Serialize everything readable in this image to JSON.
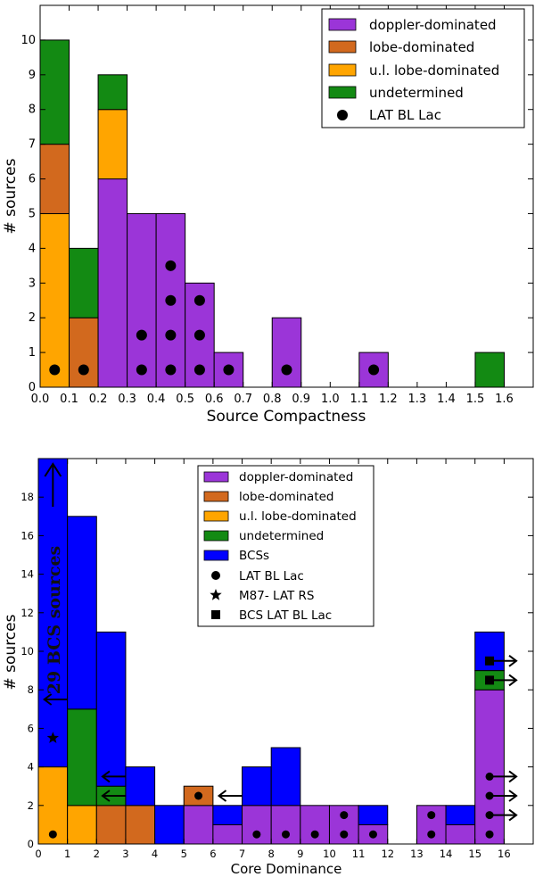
{
  "colors": {
    "doppler": "#9b35d8",
    "lobe": "#d2691e",
    "ul_lobe": "#ffa500",
    "undetermined": "#138a13",
    "bcs": "#0000ff",
    "marker": "#000000"
  },
  "chart_data": [
    {
      "type": "bar",
      "stacked": true,
      "title": "",
      "xlabel": "Source Compactness",
      "ylabel": "# sources",
      "xlim": [
        0.0,
        1.7
      ],
      "ylim": [
        0,
        11
      ],
      "bin_width": 0.1,
      "x_ticks": [
        "0.0",
        "0.1",
        "0.2",
        "0.3",
        "0.4",
        "0.5",
        "0.6",
        "0.7",
        "0.8",
        "0.9",
        "1.0",
        "1.1",
        "1.2",
        "1.3",
        "1.4",
        "1.5",
        "1.6"
      ],
      "y_ticks": [
        "0",
        "1",
        "2",
        "3",
        "4",
        "5",
        "6",
        "7",
        "8",
        "9",
        "10"
      ],
      "legend_position": "top-right",
      "legend": [
        "doppler-dominated",
        "lobe-dominated",
        "u.l. lobe-dominated",
        "undetermined",
        "LAT BL Lac"
      ],
      "bars": [
        {
          "x0": 0.0,
          "segments": [
            {
              "series": "ul_lobe",
              "value": 5
            },
            {
              "series": "lobe",
              "value": 2
            },
            {
              "series": "undetermined",
              "value": 3
            }
          ]
        },
        {
          "x0": 0.1,
          "segments": [
            {
              "series": "lobe",
              "value": 2
            },
            {
              "series": "undetermined",
              "value": 2
            }
          ]
        },
        {
          "x0": 0.2,
          "segments": [
            {
              "series": "doppler",
              "value": 6
            },
            {
              "series": "ul_lobe",
              "value": 2
            },
            {
              "series": "undetermined",
              "value": 1
            }
          ]
        },
        {
          "x0": 0.3,
          "segments": [
            {
              "series": "doppler",
              "value": 5
            }
          ]
        },
        {
          "x0": 0.4,
          "segments": [
            {
              "series": "doppler",
              "value": 5
            }
          ]
        },
        {
          "x0": 0.5,
          "segments": [
            {
              "series": "doppler",
              "value": 3
            }
          ]
        },
        {
          "x0": 0.6,
          "segments": [
            {
              "series": "doppler",
              "value": 1
            }
          ]
        },
        {
          "x0": 0.8,
          "segments": [
            {
              "series": "doppler",
              "value": 2
            }
          ]
        },
        {
          "x0": 1.1,
          "segments": [
            {
              "series": "doppler",
              "value": 1
            }
          ]
        },
        {
          "x0": 1.5,
          "segments": [
            {
              "series": "undetermined",
              "value": 1
            }
          ]
        }
      ],
      "markers": [
        {
          "symbol": "circle",
          "x": 0.05,
          "y": 0.5
        },
        {
          "symbol": "circle",
          "x": 0.15,
          "y": 0.5
        },
        {
          "symbol": "circle",
          "x": 0.35,
          "y": 0.5
        },
        {
          "symbol": "circle",
          "x": 0.35,
          "y": 1.5
        },
        {
          "symbol": "circle",
          "x": 0.45,
          "y": 0.5
        },
        {
          "symbol": "circle",
          "x": 0.45,
          "y": 1.5
        },
        {
          "symbol": "circle",
          "x": 0.45,
          "y": 2.5
        },
        {
          "symbol": "circle",
          "x": 0.45,
          "y": 3.5
        },
        {
          "symbol": "circle",
          "x": 0.55,
          "y": 0.5
        },
        {
          "symbol": "circle",
          "x": 0.55,
          "y": 1.5
        },
        {
          "symbol": "circle",
          "x": 0.55,
          "y": 2.5
        },
        {
          "symbol": "circle",
          "x": 0.65,
          "y": 0.5
        },
        {
          "symbol": "circle",
          "x": 0.85,
          "y": 0.5
        },
        {
          "symbol": "circle",
          "x": 1.15,
          "y": 0.5
        }
      ]
    },
    {
      "type": "bar",
      "stacked": true,
      "title": "",
      "xlabel": "Core Dominance",
      "ylabel": "# sources",
      "xlim": [
        0,
        17
      ],
      "ylim": [
        0,
        20
      ],
      "bin_width": 1,
      "x_ticks": [
        "0",
        "1",
        "2",
        "3",
        "4",
        "5",
        "6",
        "7",
        "8",
        "9",
        "10",
        "11",
        "12",
        "13",
        "14",
        "15",
        "16"
      ],
      "y_ticks": [
        "0",
        "2",
        "4",
        "6",
        "8",
        "10",
        "12",
        "14",
        "16",
        "18"
      ],
      "legend_position": "top-center",
      "legend": [
        "doppler-dominated",
        "lobe-dominated",
        "u.l. lobe-dominated",
        "undetermined",
        "BCSs",
        "LAT BL Lac",
        "M87- LAT RS",
        "BCS LAT BL Lac"
      ],
      "annotation": "29 BCS sources",
      "bars": [
        {
          "x0": 0,
          "segments": [
            {
              "series": "ul_lobe",
              "value": 4
            },
            {
              "series": "bcs",
              "value": 16
            }
          ]
        },
        {
          "x0": 1,
          "segments": [
            {
              "series": "ul_lobe",
              "value": 2
            },
            {
              "series": "undetermined",
              "value": 5
            },
            {
              "series": "bcs",
              "value": 10
            }
          ]
        },
        {
          "x0": 2,
          "segments": [
            {
              "series": "lobe",
              "value": 2
            },
            {
              "series": "undetermined",
              "value": 1
            },
            {
              "series": "bcs",
              "value": 8
            }
          ]
        },
        {
          "x0": 3,
          "segments": [
            {
              "series": "lobe",
              "value": 2
            },
            {
              "series": "bcs",
              "value": 2
            }
          ]
        },
        {
          "x0": 4,
          "segments": [
            {
              "series": "bcs",
              "value": 2
            }
          ]
        },
        {
          "x0": 5,
          "segments": [
            {
              "series": "doppler",
              "value": 2
            },
            {
              "series": "lobe",
              "value": 1
            }
          ]
        },
        {
          "x0": 6,
          "segments": [
            {
              "series": "doppler",
              "value": 1
            },
            {
              "series": "bcs",
              "value": 1
            }
          ]
        },
        {
          "x0": 7,
          "segments": [
            {
              "series": "doppler",
              "value": 2
            },
            {
              "series": "bcs",
              "value": 2
            }
          ]
        },
        {
          "x0": 8,
          "segments": [
            {
              "series": "doppler",
              "value": 2
            },
            {
              "series": "bcs",
              "value": 3
            }
          ]
        },
        {
          "x0": 9,
          "segments": [
            {
              "series": "doppler",
              "value": 2
            }
          ]
        },
        {
          "x0": 10,
          "segments": [
            {
              "series": "doppler",
              "value": 2
            }
          ]
        },
        {
          "x0": 11,
          "segments": [
            {
              "series": "doppler",
              "value": 1
            },
            {
              "series": "bcs",
              "value": 1
            }
          ]
        },
        {
          "x0": 13,
          "segments": [
            {
              "series": "doppler",
              "value": 2
            }
          ]
        },
        {
          "x0": 14,
          "segments": [
            {
              "series": "doppler",
              "value": 1
            },
            {
              "series": "bcs",
              "value": 1
            }
          ]
        },
        {
          "x0": 15,
          "segments": [
            {
              "series": "doppler",
              "value": 8
            },
            {
              "series": "undetermined",
              "value": 1
            },
            {
              "series": "bcs",
              "value": 2
            }
          ]
        }
      ],
      "markers": [
        {
          "symbol": "circle",
          "x": 0.5,
          "y": 0.5
        },
        {
          "symbol": "star",
          "x": 0.5,
          "y": 5.5
        },
        {
          "symbol": "circle",
          "x": 5.5,
          "y": 2.5
        },
        {
          "symbol": "circle",
          "x": 7.5,
          "y": 0.5
        },
        {
          "symbol": "circle",
          "x": 8.5,
          "y": 0.5
        },
        {
          "symbol": "circle",
          "x": 9.5,
          "y": 0.5
        },
        {
          "symbol": "circle",
          "x": 10.5,
          "y": 0.5
        },
        {
          "symbol": "circle",
          "x": 10.5,
          "y": 1.5
        },
        {
          "symbol": "circle",
          "x": 11.5,
          "y": 0.5
        },
        {
          "symbol": "circle",
          "x": 13.5,
          "y": 0.5
        },
        {
          "symbol": "circle",
          "x": 13.5,
          "y": 1.5
        },
        {
          "symbol": "circle",
          "x": 15.5,
          "y": 0.5
        },
        {
          "symbol": "circle",
          "x": 15.5,
          "y": 1.5
        },
        {
          "symbol": "circle",
          "x": 15.5,
          "y": 2.5
        },
        {
          "symbol": "circle",
          "x": 15.5,
          "y": 3.5
        },
        {
          "symbol": "square",
          "x": 15.5,
          "y": 8.5
        },
        {
          "symbol": "square",
          "x": 15.5,
          "y": 9.5
        }
      ],
      "limit_arrows": [
        {
          "direction": "up",
          "x": 0.5,
          "y": 17.5
        },
        {
          "direction": "left",
          "x": 1.0,
          "y": 7.5
        },
        {
          "direction": "left",
          "x": 3.0,
          "y": 3.5
        },
        {
          "direction": "left",
          "x": 3.0,
          "y": 2.5
        },
        {
          "direction": "left",
          "x": 7.0,
          "y": 2.5
        },
        {
          "direction": "right",
          "x": 15.5,
          "y": 9.5
        },
        {
          "direction": "right",
          "x": 15.5,
          "y": 8.5
        },
        {
          "direction": "right",
          "x": 15.5,
          "y": 3.5
        },
        {
          "direction": "right",
          "x": 15.5,
          "y": 2.5
        },
        {
          "direction": "right",
          "x": 15.5,
          "y": 1.5
        }
      ]
    }
  ]
}
